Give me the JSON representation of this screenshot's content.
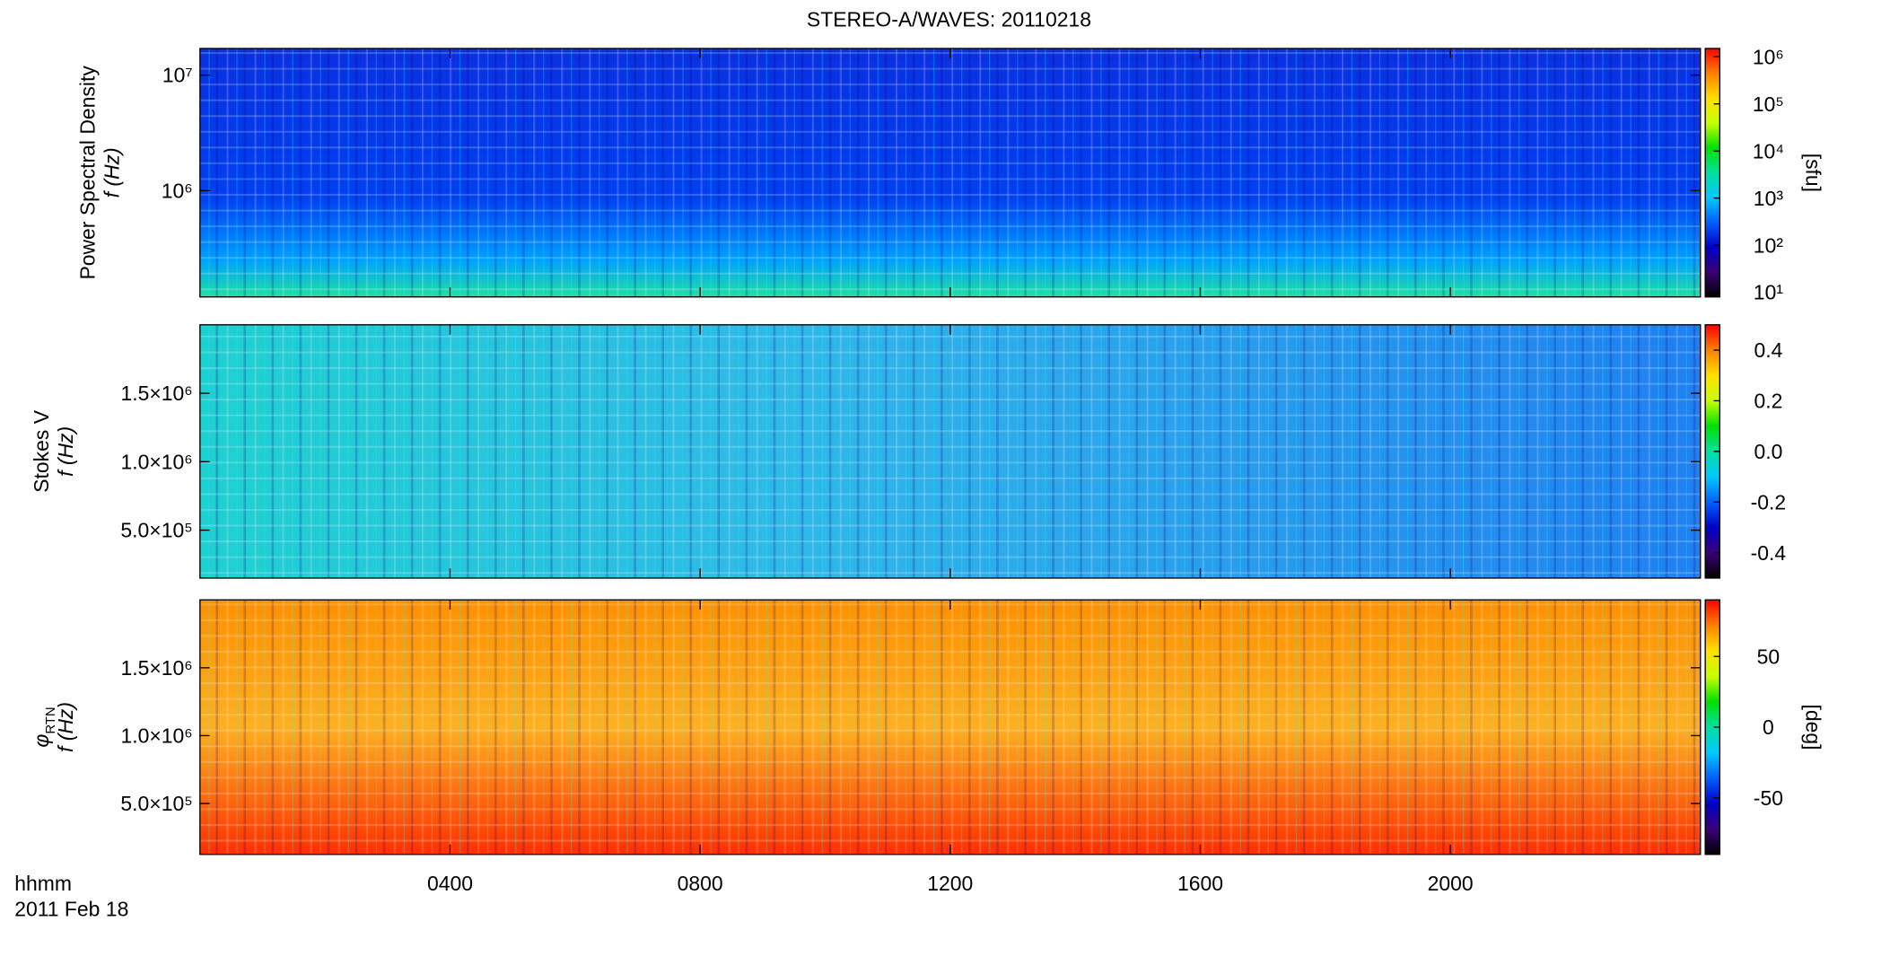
{
  "figure": {
    "title": "STEREO-A/WAVES: 20110218",
    "xlim": [
      0,
      24
    ],
    "xticks": [
      {
        "value": 4,
        "label": "0400"
      },
      {
        "value": 8,
        "label": "0800"
      },
      {
        "value": 12,
        "label": "1200"
      },
      {
        "value": 16,
        "label": "1600"
      },
      {
        "value": 20,
        "label": "2000"
      }
    ],
    "xlabel": "hhmm",
    "date": "2011 Feb 18",
    "colormap": [
      "#000000",
      "#3a0078",
      "#0000c8",
      "#0060ff",
      "#00c8ff",
      "#00e0a0",
      "#00e000",
      "#c8ff00",
      "#ffe000",
      "#ff8000",
      "#ff0000"
    ]
  },
  "chart_data": [
    {
      "type": "heatmap",
      "ylabel": "Power Spectral Density",
      "ylabel2": "f (Hz)",
      "yscale": "log",
      "ylim": [
        120000,
        17000000
      ],
      "yticks": [
        {
          "value": 1000000,
          "label": "10⁶"
        },
        {
          "value": 10000000,
          "label": "10⁷"
        }
      ],
      "colorbar": {
        "scale": "log",
        "lim": [
          8,
          1500000
        ],
        "label": "[sfu]",
        "ticks": [
          {
            "value": 10,
            "label": "10¹"
          },
          {
            "value": 100,
            "label": "10²"
          },
          {
            "value": 1000,
            "label": "10³"
          },
          {
            "value": 10000,
            "label": "10⁴"
          },
          {
            "value": 100000,
            "label": "10⁵"
          },
          {
            "value": 1000000,
            "label": "10⁶"
          }
        ]
      }
    },
    {
      "type": "heatmap",
      "ylabel": "Stokes V",
      "ylabel2": "f (Hz)",
      "yscale": "linear",
      "ylim": [
        150000,
        2000000
      ],
      "yticks": [
        {
          "value": 500000,
          "label": "5.0×10⁵"
        },
        {
          "value": 1000000,
          "label": "1.0×10⁶"
        },
        {
          "value": 1500000,
          "label": "1.5×10⁶"
        }
      ],
      "colorbar": {
        "scale": "linear",
        "lim": [
          -0.5,
          0.5
        ],
        "ticks": [
          -0.4,
          -0.2,
          {
            "value": 0,
            "label": "0.0"
          },
          0.2,
          0.4
        ]
      }
    },
    {
      "type": "heatmap",
      "ylabel": "φ",
      "ylabel_sub": "RTN",
      "ylabel2": "f (Hz)",
      "yscale": "linear",
      "ylim": [
        125000,
        2000000
      ],
      "yticks": [
        {
          "value": 500000,
          "label": "5.0×10⁵"
        },
        {
          "value": 1000000,
          "label": "1.0×10⁶"
        },
        {
          "value": 1500000,
          "label": "1.5×10⁶"
        }
      ],
      "colorbar": {
        "scale": "linear",
        "lim": [
          -90,
          90
        ],
        "label": "[deg]",
        "ticks": [
          -50,
          0,
          50
        ]
      }
    }
  ]
}
